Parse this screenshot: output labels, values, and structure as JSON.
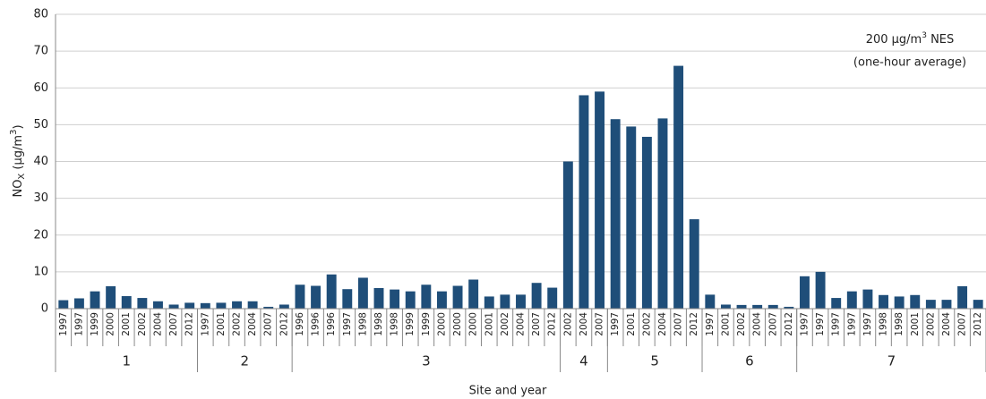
{
  "chart_data": {
    "type": "bar",
    "color": "#1f4e79",
    "ylabel": [
      "NO",
      "X",
      " (µg/m",
      "3",
      ")"
    ],
    "xlabel": "Site and year",
    "annotation": [
      [
        "200 µg/m",
        "3",
        " NES"
      ],
      "(one-hour average)"
    ],
    "ylim": [
      0,
      80
    ],
    "yticks": [
      0,
      10,
      20,
      30,
      40,
      50,
      60,
      70,
      80
    ],
    "grid": true,
    "groups": [
      {
        "name": "1",
        "categories": [
          "1997",
          "1997",
          "1999",
          "2000",
          "2001",
          "2002",
          "2004",
          "2007",
          "2012"
        ],
        "values": [
          2.3,
          2.8,
          4.7,
          6.1,
          3.4,
          2.9,
          2.0,
          1.1,
          1.6
        ]
      },
      {
        "name": "2",
        "categories": [
          "1997",
          "2001",
          "2002",
          "2004",
          "2007",
          "2012"
        ],
        "values": [
          1.5,
          1.6,
          2.0,
          2.0,
          0.5,
          1.1
        ]
      },
      {
        "name": "3",
        "categories": [
          "1996",
          "1996",
          "1996",
          "1997",
          "1998",
          "1998",
          "1998",
          "1999",
          "1999",
          "2000",
          "2000",
          "2000",
          "2001",
          "2002",
          "2004",
          "2007",
          "2012"
        ],
        "values": [
          6.5,
          6.2,
          9.3,
          5.3,
          8.4,
          5.6,
          5.2,
          4.7,
          6.5,
          4.7,
          6.2,
          7.9,
          3.3,
          3.8,
          3.8,
          7.0,
          5.7
        ]
      },
      {
        "name": "4",
        "categories": [
          "2002",
          "2004",
          "2007"
        ],
        "values": [
          40,
          58,
          59
        ]
      },
      {
        "name": "5",
        "categories": [
          "1997",
          "2001",
          "2002",
          "2004",
          "2007",
          "2012"
        ],
        "values": [
          51.5,
          49.5,
          46.7,
          51.7,
          66,
          24.3
        ]
      },
      {
        "name": "6",
        "categories": [
          "1997",
          "2001",
          "2002",
          "2004",
          "2007",
          "2012"
        ],
        "values": [
          3.8,
          1.1,
          1.0,
          1.0,
          1.0,
          0.5
        ]
      },
      {
        "name": "7",
        "categories": [
          "1997",
          "1997",
          "1997",
          "1997",
          "1997",
          "1998",
          "1998",
          "2001",
          "2002",
          "2004",
          "2007",
          "2012"
        ],
        "values": [
          8.8,
          10.0,
          2.9,
          4.7,
          5.2,
          3.7,
          3.3,
          3.7,
          2.4,
          2.4,
          6.1,
          2.4
        ]
      }
    ]
  }
}
